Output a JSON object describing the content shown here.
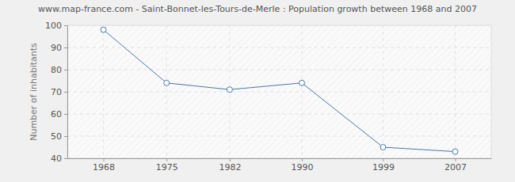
{
  "chart_data": {
    "type": "line",
    "title": "www.map-france.com - Saint-Bonnet-les-Tours-de-Merle : Population growth between 1968 and 2007",
    "y_label": "Number of inhabitants",
    "x": [
      1968,
      1975,
      1982,
      1990,
      1999,
      2007
    ],
    "values": [
      98,
      74,
      71,
      74,
      45,
      43
    ],
    "color": "#4a78a6",
    "marker": "circle",
    "line_style": "solid",
    "xlim": [
      1964,
      2011
    ],
    "xticks": [
      1968,
      1975,
      1982,
      1990,
      1999,
      2007
    ],
    "ylim": [
      40,
      100
    ],
    "yticks": [
      40,
      50,
      60,
      70,
      80,
      90,
      100
    ],
    "grid": true
  }
}
